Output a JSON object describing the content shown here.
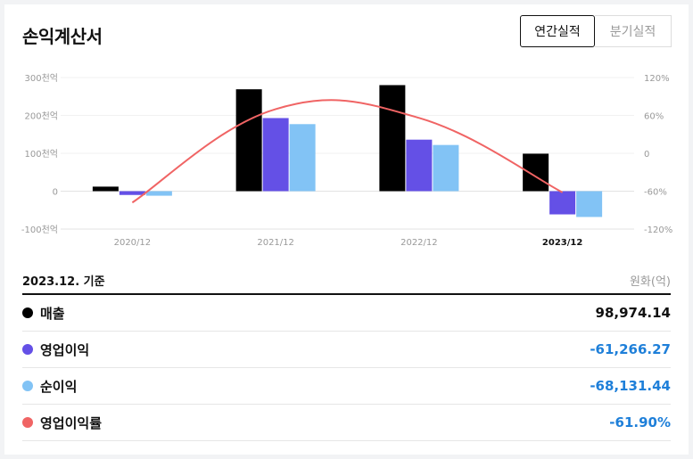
{
  "header": {
    "title": "손익계산서",
    "tabs": [
      {
        "label": "연간실적",
        "active": true
      },
      {
        "label": "분기실적",
        "active": false
      }
    ]
  },
  "chart_data": {
    "type": "bar",
    "categories": [
      "2020/12",
      "2021/12",
      "2022/12",
      "2023/12"
    ],
    "highlight_category": "2023/12",
    "series": [
      {
        "name": "매출",
        "kind": "bar",
        "axis": "left",
        "color": "#000000",
        "values": [
          12,
          269,
          280,
          98.97
        ]
      },
      {
        "name": "영업이익",
        "kind": "bar",
        "axis": "left",
        "color": "#6450e6",
        "values": [
          -10,
          193,
          136,
          -61.27
        ]
      },
      {
        "name": "순이익",
        "kind": "bar",
        "axis": "left",
        "color": "#82c3f5",
        "values": [
          -12,
          177,
          122,
          -68.13
        ]
      },
      {
        "name": "영업이익률",
        "kind": "line",
        "axis": "right",
        "color": "#f06464",
        "values": [
          -78,
          70,
          56,
          -61.9
        ]
      }
    ],
    "left_axis": {
      "ylim": [
        -100,
        300
      ],
      "ticks": [
        300,
        200,
        100,
        0,
        -100
      ],
      "tick_labels": [
        "300천억",
        "200천억",
        "100천억",
        "0",
        "-100천억"
      ]
    },
    "right_axis": {
      "ylim": [
        -120,
        120
      ],
      "ticks": [
        120,
        60,
        0,
        -60,
        -120
      ],
      "tick_labels": [
        "120%",
        "60%",
        "0",
        "-60%",
        "-120%"
      ]
    },
    "grid": true
  },
  "summary": {
    "basis": "2023.12. 기준",
    "unit": "원화(억)",
    "rows": [
      {
        "label": "매출",
        "value": "98,974.14",
        "color": "#000000",
        "value_color": "black"
      },
      {
        "label": "영업이익",
        "value": "-61,266.27",
        "color": "#6450e6",
        "value_color": "blue"
      },
      {
        "label": "순이익",
        "value": "-68,131.44",
        "color": "#82c3f5",
        "value_color": "blue"
      },
      {
        "label": "영업이익률",
        "value": "-61.90%",
        "color": "#f06464",
        "value_color": "blue"
      }
    ]
  }
}
